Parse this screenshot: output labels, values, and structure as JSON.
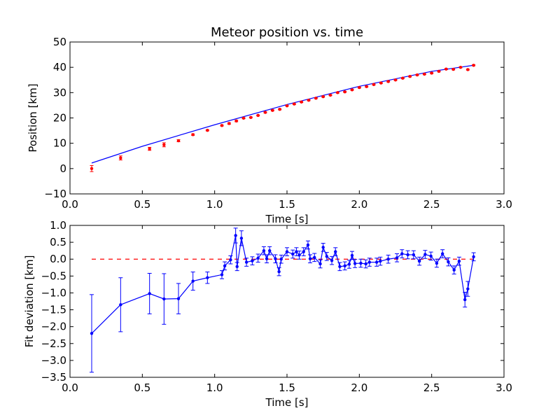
{
  "chart_data": [
    {
      "type": "scatter",
      "title": "Meteor position vs. time",
      "xlabel": "Time [s]",
      "ylabel": "Position [km]",
      "xlim": [
        0.0,
        3.0
      ],
      "ylim": [
        -10,
        50
      ],
      "xticks": [
        0.0,
        0.5,
        1.0,
        1.5,
        2.0,
        2.5,
        3.0
      ],
      "xtick_labels": [
        "0.0",
        "0.5",
        "1.0",
        "1.5",
        "2.0",
        "2.5",
        "3.0"
      ],
      "yticks": [
        -10,
        0,
        10,
        20,
        30,
        40,
        50
      ],
      "ytick_labels": [
        "−10",
        "0",
        "10",
        "20",
        "30",
        "40",
        "50"
      ],
      "grid": false,
      "colors": {
        "points": "#ff0000",
        "fit": "#0000ff"
      },
      "series": [
        {
          "kind": "points-with-errorbars",
          "x": [
            0.15,
            0.35,
            0.55,
            0.65,
            0.75,
            0.85,
            0.95,
            1.05,
            1.1,
            1.15,
            1.2,
            1.25,
            1.3,
            1.35,
            1.4,
            1.45,
            1.5,
            1.55,
            1.6,
            1.65,
            1.7,
            1.75,
            1.8,
            1.85,
            1.9,
            1.95,
            2.0,
            2.05,
            2.1,
            2.15,
            2.2,
            2.25,
            2.3,
            2.35,
            2.4,
            2.45,
            2.5,
            2.55,
            2.6,
            2.65,
            2.7,
            2.75,
            2.79
          ],
          "y": [
            0.0,
            4.2,
            7.8,
            9.4,
            11.0,
            13.4,
            15.1,
            17.0,
            17.8,
            18.8,
            19.9,
            20.2,
            21.0,
            22.2,
            23.0,
            23.4,
            24.8,
            25.5,
            26.3,
            27.0,
            27.8,
            28.4,
            29.0,
            30.0,
            30.3,
            31.1,
            32.0,
            32.4,
            33.2,
            33.8,
            34.4,
            35.0,
            35.7,
            36.4,
            37.0,
            37.3,
            37.7,
            38.4,
            39.3,
            39.2,
            40.0,
            39.1,
            40.8
          ],
          "err": [
            1.2,
            0.8,
            0.6,
            0.8,
            0.4,
            0.3,
            0.2,
            0.2,
            0.3,
            0.3,
            0.2,
            0.2,
            0.2,
            0.2,
            0.2,
            0.2,
            0.1,
            0.2,
            0.2,
            0.2,
            0.2,
            0.2,
            0.2,
            0.2,
            0.2,
            0.2,
            0.2,
            0.2,
            0.2,
            0.2,
            0.2,
            0.2,
            0.2,
            0.2,
            0.2,
            0.2,
            0.2,
            0.2,
            0.2,
            0.2,
            0.2,
            0.2,
            0.2
          ]
        },
        {
          "kind": "fit-line",
          "x": [
            0.15,
            0.5,
            1.0,
            1.5,
            2.0,
            2.5,
            2.79
          ],
          "y": [
            2.2,
            8.8,
            17.3,
            25.3,
            32.5,
            38.4,
            40.8
          ]
        }
      ]
    },
    {
      "type": "line",
      "title": "",
      "xlabel": "Time [s]",
      "ylabel": "Fit deviation [km]",
      "xlim": [
        0.0,
        3.0
      ],
      "ylim": [
        -3.5,
        1.0
      ],
      "xticks": [
        0.0,
        0.5,
        1.0,
        1.5,
        2.0,
        2.5,
        3.0
      ],
      "xtick_labels": [
        "0.0",
        "0.5",
        "1.0",
        "1.5",
        "2.0",
        "2.5",
        "3.0"
      ],
      "yticks": [
        -3.5,
        -3.0,
        -2.5,
        -2.0,
        -1.5,
        -1.0,
        -0.5,
        0.0,
        0.5,
        1.0
      ],
      "ytick_labels": [
        "−3.5",
        "−3.0",
        "−2.5",
        "−2.0",
        "−1.5",
        "−1.0",
        "−0.5",
        "0.0",
        "0.5",
        "1.0"
      ],
      "grid": false,
      "colors": {
        "line": "#0000ff",
        "reference": "#ff0000"
      },
      "reference_y": 0.0,
      "reference_x": [
        0.15,
        2.79
      ],
      "series": [
        {
          "kind": "line-with-errorbars",
          "x": [
            0.15,
            0.35,
            0.55,
            0.65,
            0.75,
            0.85,
            0.95,
            1.05,
            1.07,
            1.11,
            1.145,
            1.155,
            1.185,
            1.22,
            1.26,
            1.3,
            1.34,
            1.36,
            1.38,
            1.42,
            1.445,
            1.46,
            1.5,
            1.54,
            1.565,
            1.585,
            1.615,
            1.645,
            1.66,
            1.69,
            1.73,
            1.75,
            1.775,
            1.81,
            1.835,
            1.865,
            1.9,
            1.93,
            1.95,
            1.97,
            2.01,
            2.045,
            2.07,
            2.12,
            2.145,
            2.2,
            2.26,
            2.295,
            2.335,
            2.375,
            2.415,
            2.455,
            2.495,
            2.535,
            2.575,
            2.615,
            2.655,
            2.69,
            2.73,
            2.75,
            2.79
          ],
          "y": [
            -2.2,
            -1.35,
            -1.02,
            -1.18,
            -1.17,
            -0.65,
            -0.55,
            -0.46,
            -0.2,
            -0.02,
            0.7,
            -0.22,
            0.62,
            -0.09,
            -0.05,
            0.03,
            0.25,
            0.01,
            0.25,
            0.01,
            -0.37,
            0.0,
            0.22,
            0.15,
            0.22,
            0.12,
            0.22,
            0.42,
            0.01,
            0.05,
            -0.14,
            0.35,
            0.08,
            -0.04,
            0.22,
            -0.22,
            -0.2,
            -0.15,
            0.11,
            -0.13,
            -0.12,
            -0.14,
            -0.09,
            -0.09,
            -0.06,
            0.0,
            0.04,
            0.16,
            0.13,
            0.13,
            -0.06,
            0.14,
            0.09,
            -0.12,
            0.16,
            -0.08,
            -0.32,
            -0.06,
            -1.2,
            -0.88,
            0.07
          ]
        }
      ]
    }
  ]
}
